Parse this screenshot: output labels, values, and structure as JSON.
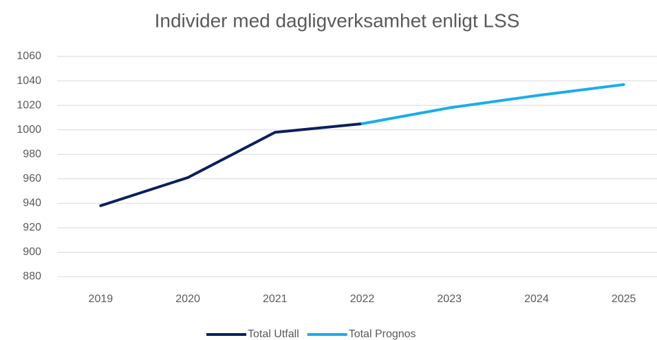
{
  "chart_data": {
    "type": "line",
    "title": "Individer med dagligverksamhet enligt LSS",
    "categories": [
      "2019",
      "2020",
      "2021",
      "2022",
      "2023",
      "2024",
      "2025"
    ],
    "series": [
      {
        "name": "Total Utfall",
        "color": "#0b1f5c",
        "values": [
          938,
          961,
          998,
          1005,
          null,
          null,
          null
        ]
      },
      {
        "name": "Total Prognos",
        "color": "#19aeea",
        "values": [
          null,
          null,
          null,
          1005,
          1018,
          1028,
          1037
        ]
      }
    ],
    "ylim": [
      880,
      1060
    ],
    "yticks": [
      880,
      900,
      920,
      940,
      960,
      980,
      1000,
      1020,
      1040,
      1060
    ],
    "grid": true,
    "legend": "bottom"
  }
}
